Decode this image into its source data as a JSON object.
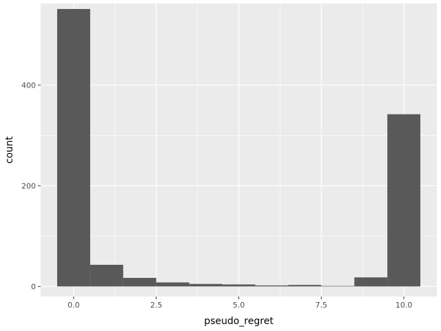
{
  "chart_data": {
    "type": "bar",
    "subtype": "histogram",
    "title": "",
    "xlabel": "pseudo_regret",
    "ylabel": "count",
    "bins": [
      {
        "x_start": -0.5,
        "x_end": 0.5,
        "count": 551
      },
      {
        "x_start": 0.5,
        "x_end": 1.5,
        "count": 43
      },
      {
        "x_start": 1.5,
        "x_end": 2.5,
        "count": 17
      },
      {
        "x_start": 2.5,
        "x_end": 3.5,
        "count": 8
      },
      {
        "x_start": 3.5,
        "x_end": 4.5,
        "count": 5
      },
      {
        "x_start": 4.5,
        "x_end": 5.5,
        "count": 4
      },
      {
        "x_start": 5.5,
        "x_end": 6.5,
        "count": 2
      },
      {
        "x_start": 6.5,
        "x_end": 7.5,
        "count": 3
      },
      {
        "x_start": 7.5,
        "x_end": 8.5,
        "count": 1
      },
      {
        "x_start": 8.5,
        "x_end": 9.5,
        "count": 18
      },
      {
        "x_start": 9.5,
        "x_end": 10.5,
        "count": 342
      }
    ],
    "xlim": [
      -1.0,
      11.0
    ],
    "ylim": [
      -20,
      562
    ],
    "x_ticks": [
      0.0,
      2.5,
      5.0,
      7.5,
      10.0
    ],
    "x_tick_labels": [
      "0.0",
      "2.5",
      "5.0",
      "7.5",
      "10.0"
    ],
    "y_ticks": [
      0,
      200,
      400
    ],
    "y_tick_labels": [
      "0",
      "200",
      "400"
    ],
    "grid": true,
    "legend": "none",
    "colors": {
      "panel_background": "#ebebeb",
      "grid_major": "#ffffff",
      "bar_fill": "#595959",
      "tick_label": "#4d4d4d",
      "axis_title": "#000000"
    }
  }
}
